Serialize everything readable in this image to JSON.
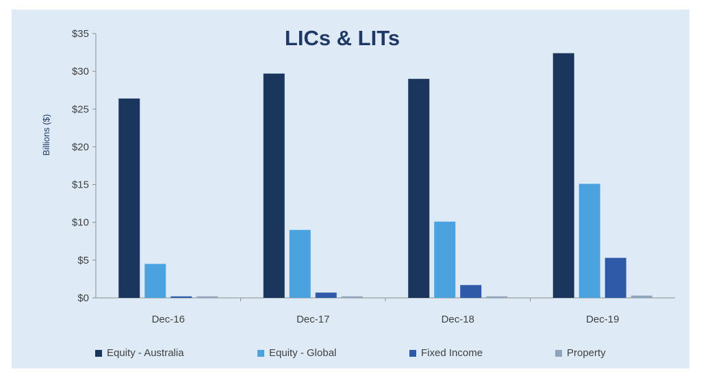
{
  "chart_data": {
    "type": "bar",
    "title": "LICs & LITs",
    "xlabel": "",
    "ylabel": "Billions ($)",
    "ylim": [
      0,
      35
    ],
    "yticks": [
      "$0",
      "$5",
      "$10",
      "$15",
      "$20",
      "$25",
      "$30",
      "$35"
    ],
    "categories": [
      "Dec-16",
      "Dec-17",
      "Dec-18",
      "Dec-19"
    ],
    "series": [
      {
        "name": "Equity - Australia",
        "color": "#1b365d",
        "values": [
          26.4,
          29.7,
          29.0,
          32.4
        ]
      },
      {
        "name": "Equity - Global",
        "color": "#4aa3df",
        "values": [
          4.5,
          9.0,
          10.1,
          15.1
        ]
      },
      {
        "name": "Fixed Income",
        "color": "#2e5aa8",
        "values": [
          0.2,
          0.7,
          1.7,
          5.3
        ]
      },
      {
        "name": "Property",
        "color": "#8fa4b8",
        "values": [
          0.2,
          0.2,
          0.2,
          0.3
        ]
      }
    ],
    "grid": false,
    "legend_position": "bottom"
  }
}
